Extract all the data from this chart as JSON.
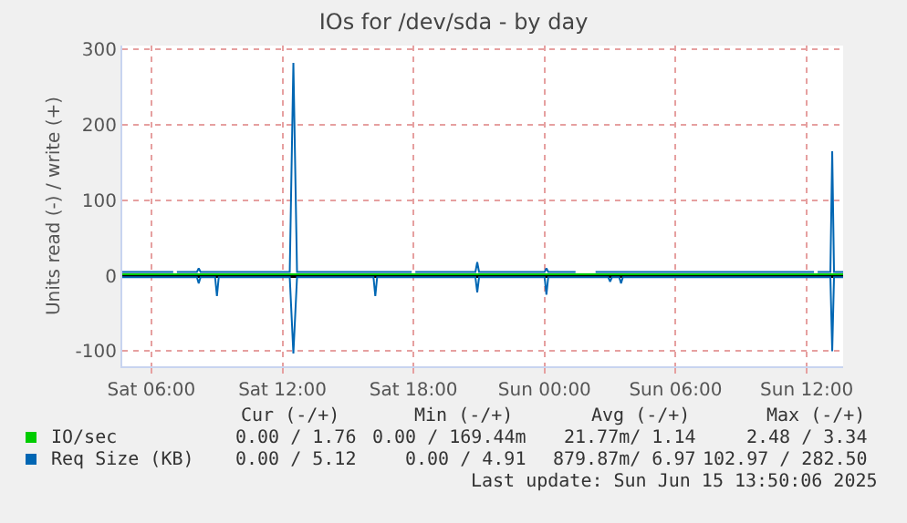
{
  "chart_data": {
    "type": "line",
    "title": "IOs for /dev/sda - by day",
    "ylabel": "Units read (-) / write (+)",
    "series": [
      {
        "name": "IO/sec",
        "color": "#00cc00",
        "x": [
          "2025-06-14T04:40",
          "2025-06-14T12:30",
          "2025-06-14T18:00",
          "2025-06-15T00:00",
          "2025-06-15T06:00",
          "2025-06-15T13:40"
        ],
        "values": [
          2,
          2,
          2,
          2,
          2,
          2
        ]
      },
      {
        "name": "Req Size (KB)",
        "color": "#0066b3",
        "x": [
          "2025-06-14T04:40",
          "2025-06-14T07:00",
          "2025-06-14T07:05",
          "2025-06-14T07:10",
          "2025-06-14T08:05",
          "2025-06-14T08:10",
          "2025-06-14T08:15",
          "2025-06-14T12:20",
          "2025-06-14T12:30",
          "2025-06-14T12:40",
          "2025-06-14T17:55",
          "2025-06-14T18:00",
          "2025-06-14T18:05",
          "2025-06-14T20:50",
          "2025-06-14T20:55",
          "2025-06-14T21:00",
          "2025-06-15T00:00",
          "2025-06-15T00:05",
          "2025-06-15T00:10",
          "2025-06-15T01:25",
          "2025-06-15T01:30",
          "2025-06-15T02:15",
          "2025-06-15T02:20",
          "2025-06-15T12:20",
          "2025-06-15T12:25",
          "2025-06-15T12:30",
          "2025-06-15T13:05",
          "2025-06-15T13:10",
          "2025-06-15T13:15",
          "2025-06-15T13:40"
        ],
        "values": [
          5,
          5,
          null,
          5,
          5,
          10,
          5,
          5,
          282,
          5,
          5,
          null,
          5,
          5,
          18,
          5,
          5,
          10,
          5,
          5,
          null,
          null,
          5,
          5,
          null,
          5,
          5,
          165,
          5,
          5
        ]
      },
      {
        "color": "#0067b4",
        "x": [
          "2025-06-14T04:40",
          "2025-06-14T08:05",
          "2025-06-14T08:10",
          "2025-06-14T08:15",
          "2025-06-14T08:55",
          "2025-06-14T09:00",
          "2025-06-14T09:05",
          "2025-06-14T12:20",
          "2025-06-14T12:30",
          "2025-06-14T12:40",
          "2025-06-14T16:10",
          "2025-06-14T16:15",
          "2025-06-14T16:20",
          "2025-06-14T20:50",
          "2025-06-14T20:55",
          "2025-06-14T21:00",
          "2025-06-15T00:00",
          "2025-06-15T00:05",
          "2025-06-15T00:10",
          "2025-06-15T02:55",
          "2025-06-15T03:00",
          "2025-06-15T03:05",
          "2025-06-15T03:25",
          "2025-06-15T03:30",
          "2025-06-15T03:35",
          "2025-06-15T13:05",
          "2025-06-15T13:10",
          "2025-06-15T13:15",
          "2025-06-15T13:40"
        ],
        "values": [
          -2,
          -2,
          -10,
          -2,
          -2,
          -27,
          -2,
          -2,
          -103,
          -2,
          -2,
          -27,
          -2,
          -2,
          -22,
          -2,
          -2,
          -25,
          -2,
          -2,
          -8,
          -2,
          -2,
          -10,
          -2,
          -2,
          -100,
          -2,
          -2
        ]
      }
    ],
    "xlim": [
      "2025-06-14T04:40",
      "2025-06-15T13:40"
    ],
    "xticks": [
      {
        "value": "2025-06-14T06:00",
        "label": "Sat 06:00"
      },
      {
        "value": "2025-06-14T12:00",
        "label": "Sat 12:00"
      },
      {
        "value": "2025-06-14T18:00",
        "label": "Sat 18:00"
      },
      {
        "value": "2025-06-15T00:00",
        "label": "Sun 00:00"
      },
      {
        "value": "2025-06-15T06:00",
        "label": "Sun 06:00"
      },
      {
        "value": "2025-06-15T12:00",
        "label": "Sun 12:00"
      }
    ],
    "ylim": [
      -120,
      305
    ],
    "yticks": [
      -100,
      0,
      100,
      200,
      300
    ],
    "grid": true,
    "legend": "bottom left",
    "line_style": "solid",
    "marker": "none",
    "annotations": [
      "Cur (-/+)",
      "Min (-/+)",
      "Avg (-/+)",
      "Max (-/+)",
      "0.00 / 1.76",
      "0.00 / 169.44m",
      "21.77m/ 1.14",
      "2.48 / 3.34",
      "0.00 / 5.12",
      "0.00 / 4.91",
      "879.87m/ 6.97",
      "102.97 / 282.50",
      "Last update: Sun Jun 15 13:50:06 2025"
    ]
  }
}
